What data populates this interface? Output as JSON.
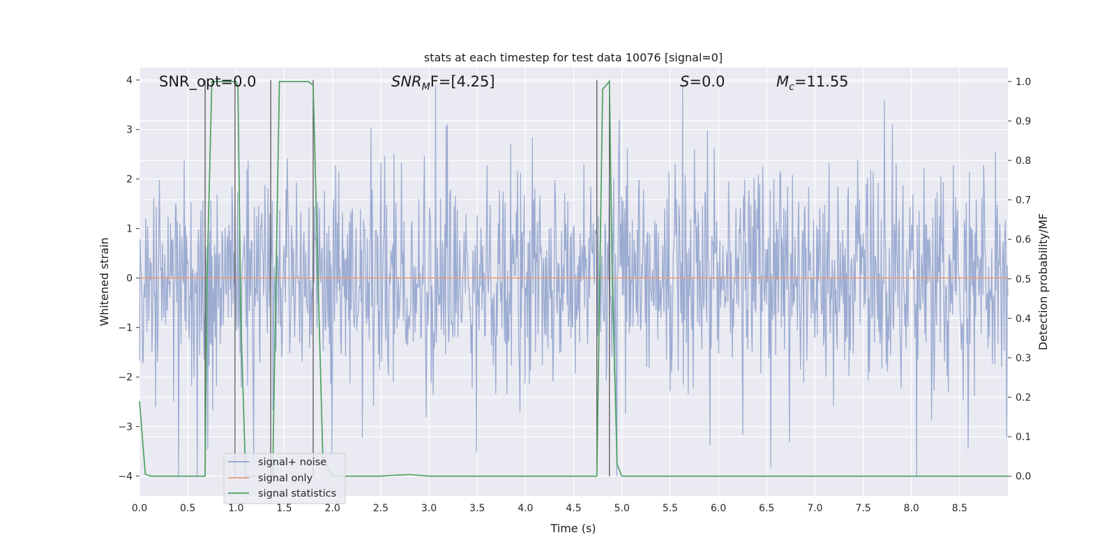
{
  "chart_data": {
    "type": "line",
    "title": "stats at each timestep for test data 10076 [signal=0]",
    "xlabel": "Time (s)",
    "ylabel": "Whitened strain",
    "y2label": "Detection probability/MF",
    "xlim": [
      0,
      9.0
    ],
    "ylim": [
      -4.4,
      4.25
    ],
    "y2lim": [
      -0.05,
      1.035
    ],
    "x_ticks": [
      "0.0",
      "0.5",
      "1.0",
      "1.5",
      "2.0",
      "2.5",
      "3.0",
      "3.5",
      "4.0",
      "4.5",
      "5.0",
      "5.5",
      "6.0",
      "6.5",
      "7.0",
      "7.5",
      "8.0",
      "8.5"
    ],
    "y_ticks": [
      "4",
      "3",
      "2",
      "1",
      "0",
      "−1",
      "−2",
      "−3",
      "−4"
    ],
    "y2_ticks": [
      "1.0",
      "0.9",
      "0.8",
      "0.7",
      "0.6",
      "0.5",
      "0.4",
      "0.3",
      "0.2",
      "0.1",
      "0.0"
    ],
    "grid": true,
    "legend_position": "lower-left",
    "annotations": {
      "snr_opt": "SNR_opt=0.0",
      "snr_mf_main": "SNR",
      "snr_mf_sub": "M",
      "snr_mf_tail": "F=[4.25]",
      "s_main": "S",
      "s_tail": "=0.0",
      "mc_main": "M",
      "mc_sub": "c",
      "mc_tail": "=11.55"
    },
    "series": [
      {
        "name": "signal+ noise",
        "color": "#8da0cb",
        "description": "whitened strain noise, approx. uniform band between -2 and 2 with peaks to about ±3.9",
        "envelope_y": [
          -4.0,
          3.9
        ]
      },
      {
        "name": "signal only",
        "color": "#e29a7c",
        "x": [
          0,
          9.0
        ],
        "y": [
          0,
          0
        ]
      },
      {
        "name": "signal statistics",
        "color": "#4aa05f",
        "axis": "right",
        "x": [
          0.0,
          0.06,
          0.12,
          0.3,
          0.5,
          0.68,
          0.7,
          0.75,
          0.8,
          1.0,
          1.02,
          1.05,
          1.1,
          1.3,
          1.38,
          1.45,
          1.55,
          1.75,
          1.8,
          1.85,
          1.9,
          2.0,
          2.2,
          2.5,
          2.6,
          2.7,
          2.8,
          2.9,
          3.0,
          3.5,
          4.0,
          4.5,
          4.74,
          4.8,
          4.87,
          4.9,
          4.95,
          5.0,
          5.5,
          6.0,
          7.0,
          8.0,
          9.0
        ],
        "y": [
          0.19,
          0.005,
          0.0,
          0.0,
          0.0,
          0.0,
          0.5,
          1.0,
          1.0,
          1.0,
          0.99,
          0.4,
          0.0,
          0.0,
          0.0,
          1.0,
          1.0,
          1.0,
          0.99,
          0.5,
          0.05,
          0.0,
          0.0,
          0.0,
          0.002,
          0.003,
          0.004,
          0.002,
          0.0,
          0.0,
          0.0,
          0.0,
          0.0,
          0.98,
          1.0,
          0.5,
          0.03,
          0.0,
          0.0,
          0.0,
          0.0,
          0.0,
          0.0
        ]
      }
    ],
    "vertical_markers_x": [
      0.68,
      0.99,
      1.36,
      1.8,
      4.74,
      4.87
    ],
    "colors": {
      "background": "#eaeaf2",
      "grid": "#ffffff",
      "marker": "#555555"
    }
  },
  "legend": {
    "items": [
      "signal+ noise",
      "signal only",
      "signal statistics"
    ]
  }
}
